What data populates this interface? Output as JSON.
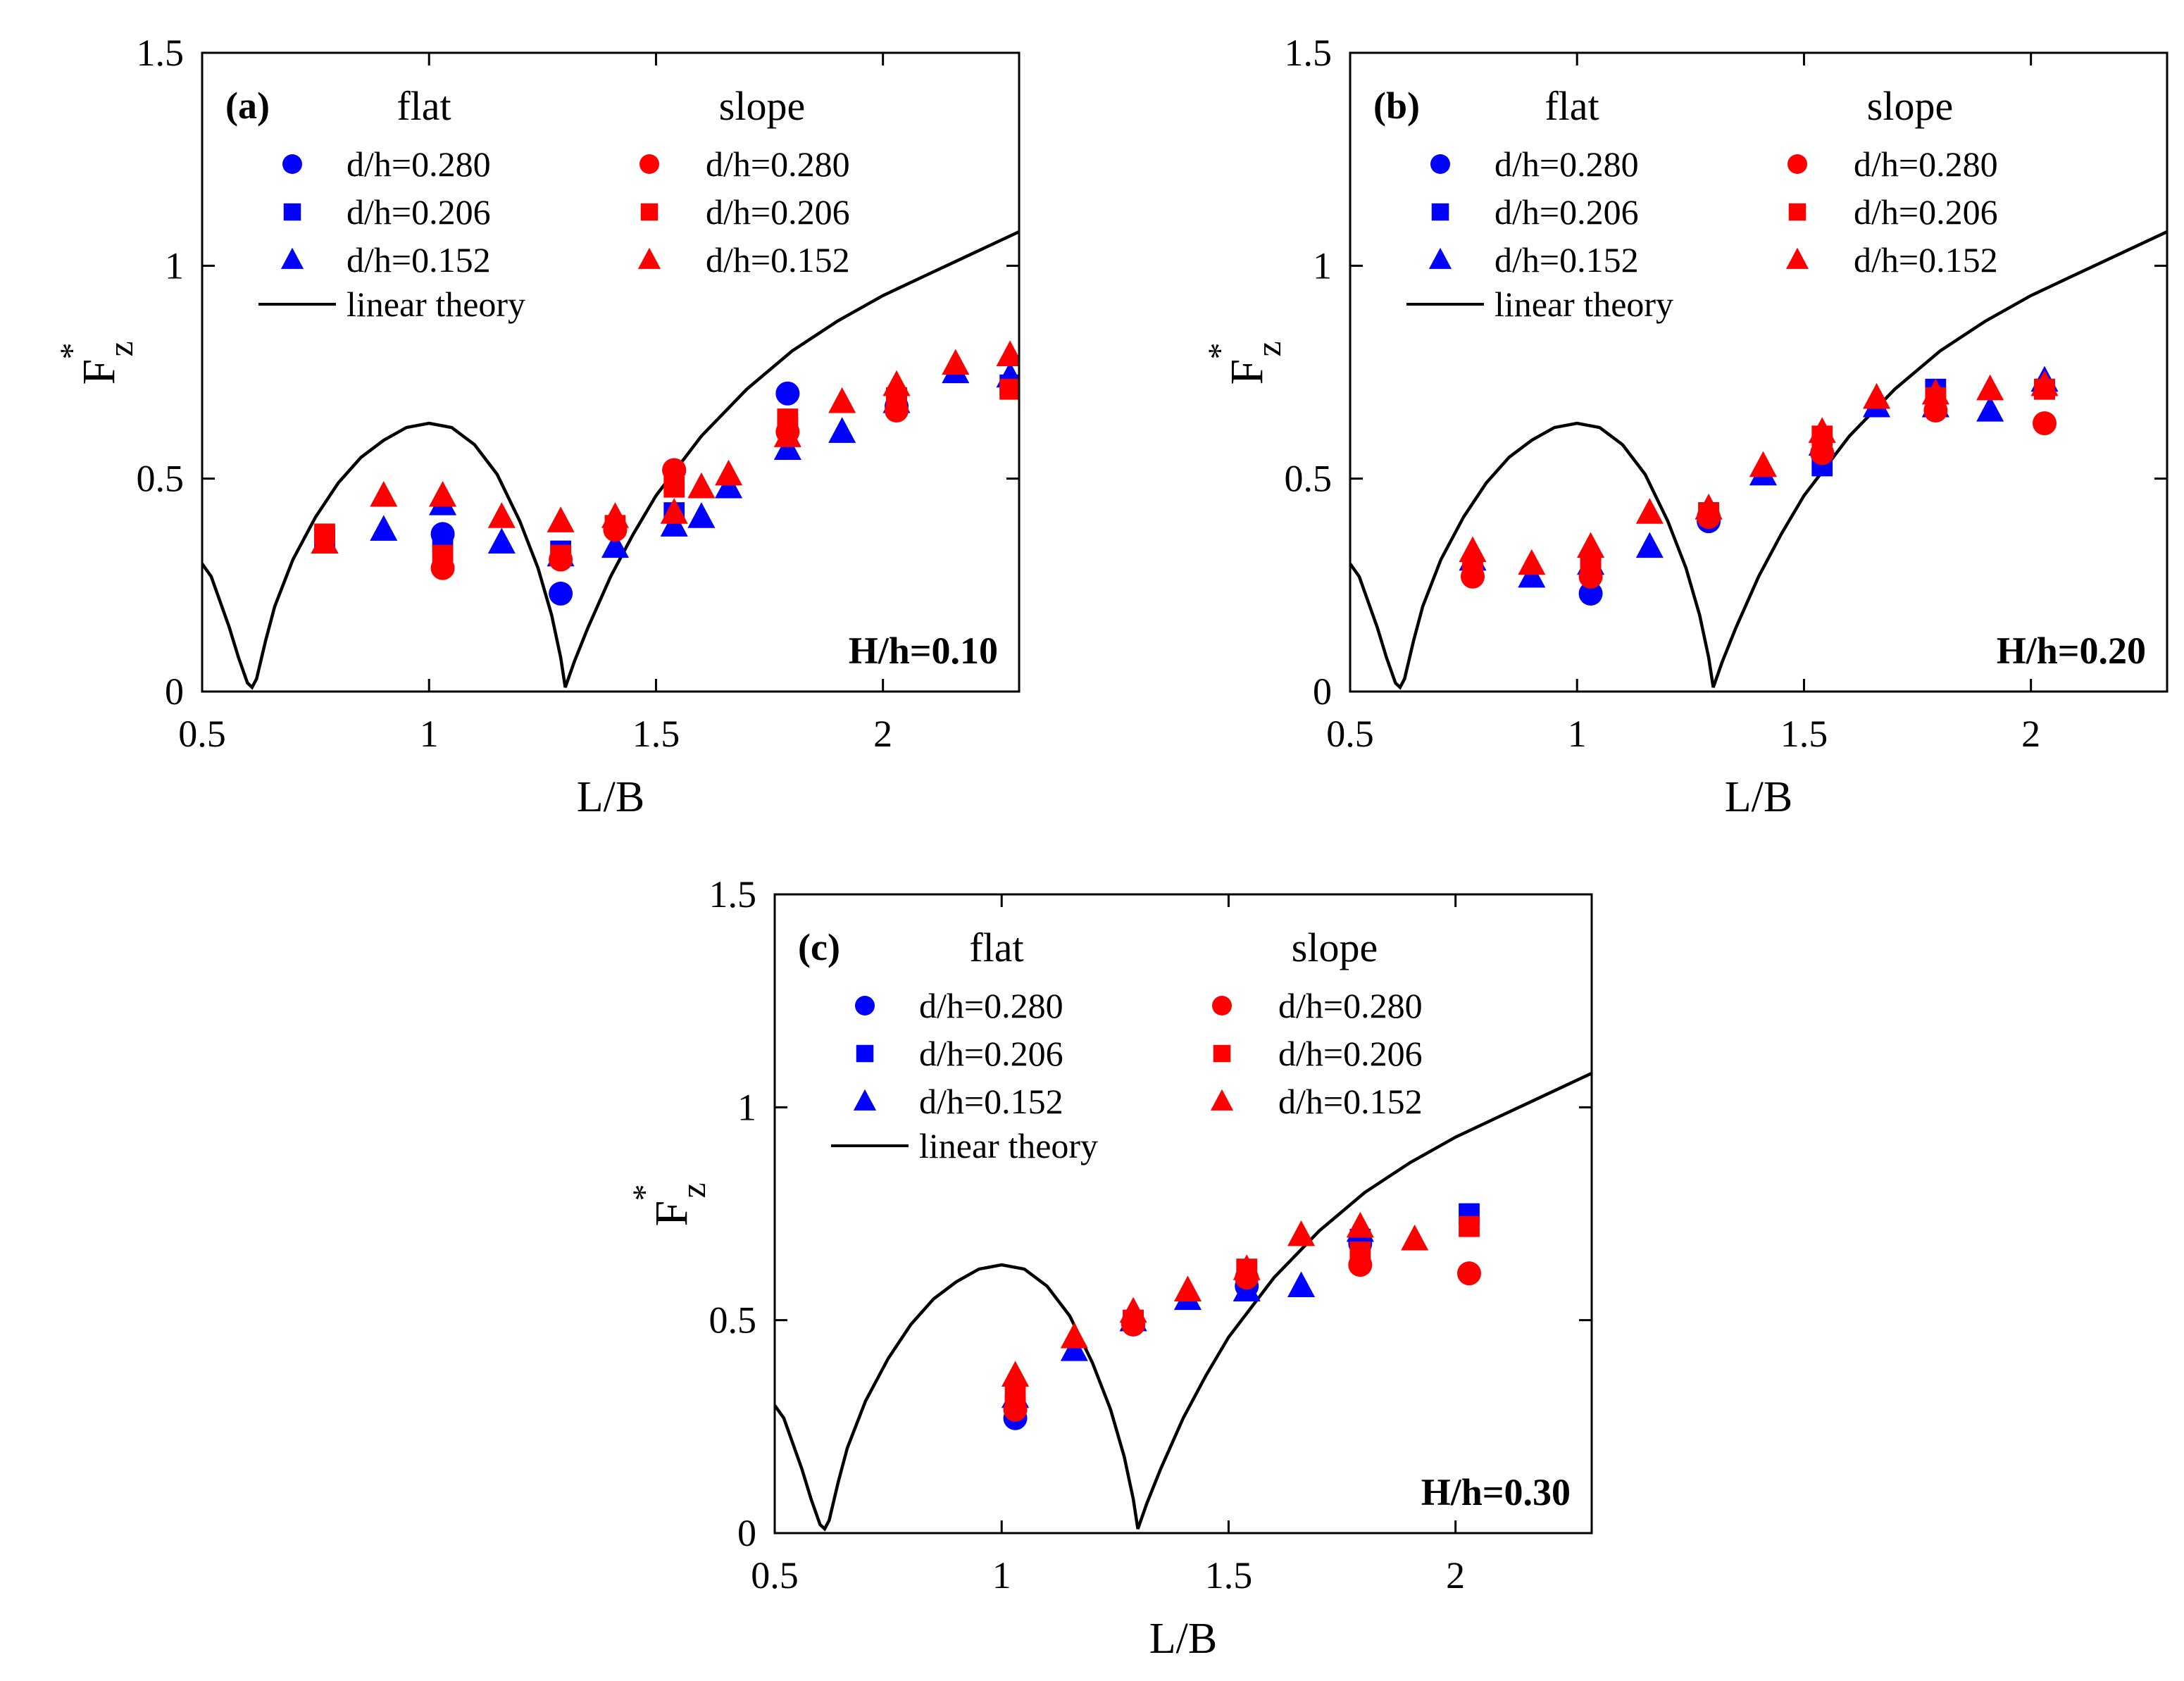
{
  "colors": {
    "flat": "#0000ff",
    "slope": "#ff0000",
    "theory": "#000000"
  },
  "chart_data": [
    {
      "type": "scatter",
      "panel_label": "(a)",
      "annotation": "H/h=0.10",
      "xlabel": "L/B",
      "ylabel": {
        "main": "F",
        "sup": "*",
        "sub": "z"
      },
      "xlim": [
        0.5,
        2.3
      ],
      "ylim": [
        0,
        1.5
      ],
      "xticks": [
        0.5,
        1,
        1.5,
        2
      ],
      "xtick_labels": [
        "0.5",
        "1",
        "1.5",
        "2"
      ],
      "yticks": [
        0,
        0.5,
        1,
        1.5
      ],
      "ytick_labels": [
        "0",
        "0.5",
        "1",
        "1.5"
      ],
      "grid": false,
      "legend": {
        "placement": "top-left",
        "flat_title": "flat",
        "slope_title": "slope",
        "entries": [
          "d/h=0.280",
          "d/h=0.206",
          "d/h=0.152"
        ],
        "line_entry": "linear theory"
      },
      "series": [
        {
          "name": "flat d/h=0.280",
          "group": "flat",
          "marker": "circle",
          "points": [
            [
              1.03,
              0.37
            ],
            [
              1.29,
              0.23
            ],
            [
              1.54,
              0.52
            ],
            [
              1.79,
              0.7
            ],
            [
              2.03,
              0.67
            ]
          ]
        },
        {
          "name": "flat d/h=0.206",
          "group": "flat",
          "marker": "square",
          "points": [
            [
              0.77,
              0.36
            ],
            [
              1.03,
              0.35
            ],
            [
              1.29,
              0.33
            ],
            [
              1.54,
              0.42
            ],
            [
              1.79,
              0.62
            ],
            [
              2.03,
              0.69
            ],
            [
              2.28,
              0.72
            ]
          ]
        },
        {
          "name": "flat d/h=0.152",
          "group": "flat",
          "marker": "triangle",
          "points": [
            [
              0.77,
              0.35
            ],
            [
              0.9,
              0.38
            ],
            [
              1.03,
              0.44
            ],
            [
              1.16,
              0.35
            ],
            [
              1.29,
              0.32
            ],
            [
              1.41,
              0.34
            ],
            [
              1.54,
              0.39
            ],
            [
              1.6,
              0.41
            ],
            [
              1.66,
              0.48
            ],
            [
              1.79,
              0.57
            ],
            [
              1.91,
              0.61
            ],
            [
              2.03,
              0.68
            ],
            [
              2.16,
              0.75
            ],
            [
              2.28,
              0.74
            ]
          ]
        },
        {
          "name": "slope d/h=0.280",
          "group": "slope",
          "marker": "circle",
          "points": [
            [
              1.03,
              0.29
            ],
            [
              1.29,
              0.31
            ],
            [
              1.41,
              0.38
            ],
            [
              1.54,
              0.52
            ],
            [
              1.79,
              0.61
            ],
            [
              2.03,
              0.66
            ]
          ]
        },
        {
          "name": "slope d/h=0.206",
          "group": "slope",
          "marker": "square",
          "points": [
            [
              0.77,
              0.37
            ],
            [
              1.03,
              0.32
            ],
            [
              1.29,
              0.32
            ],
            [
              1.41,
              0.39
            ],
            [
              1.54,
              0.48
            ],
            [
              1.79,
              0.64
            ],
            [
              2.03,
              0.69
            ],
            [
              2.28,
              0.71
            ]
          ]
        },
        {
          "name": "slope d/h=0.152",
          "group": "slope",
          "marker": "triangle",
          "points": [
            [
              0.77,
              0.35
            ],
            [
              0.9,
              0.46
            ],
            [
              1.03,
              0.46
            ],
            [
              1.16,
              0.41
            ],
            [
              1.29,
              0.4
            ],
            [
              1.41,
              0.41
            ],
            [
              1.54,
              0.42
            ],
            [
              1.6,
              0.48
            ],
            [
              1.66,
              0.51
            ],
            [
              1.79,
              0.6
            ],
            [
              1.91,
              0.68
            ],
            [
              2.03,
              0.72
            ],
            [
              2.16,
              0.77
            ],
            [
              2.28,
              0.79
            ]
          ]
        }
      ],
      "line": {
        "name": "linear theory",
        "x": [
          0.5,
          0.52,
          0.54,
          0.56,
          0.58,
          0.6,
          0.61,
          0.62,
          0.64,
          0.66,
          0.7,
          0.75,
          0.8,
          0.85,
          0.9,
          0.95,
          1.0,
          1.05,
          1.1,
          1.15,
          1.2,
          1.24,
          1.27,
          1.29,
          1.3,
          1.32,
          1.35,
          1.4,
          1.45,
          1.5,
          1.55,
          1.6,
          1.7,
          1.8,
          1.9,
          2.0,
          2.1,
          2.2,
          2.3
        ],
        "y": [
          0.3,
          0.27,
          0.21,
          0.15,
          0.08,
          0.02,
          0.01,
          0.03,
          0.12,
          0.2,
          0.31,
          0.41,
          0.49,
          0.55,
          0.59,
          0.62,
          0.63,
          0.62,
          0.58,
          0.51,
          0.4,
          0.29,
          0.18,
          0.08,
          0.01,
          0.07,
          0.15,
          0.27,
          0.37,
          0.46,
          0.53,
          0.6,
          0.71,
          0.8,
          0.87,
          0.93,
          0.98,
          1.03,
          1.08
        ]
      }
    },
    {
      "type": "scatter",
      "panel_label": "(b)",
      "annotation": "H/h=0.20",
      "xlabel": "L/B",
      "ylabel": {
        "main": "F",
        "sup": "*",
        "sub": "z"
      },
      "xlim": [
        0.5,
        2.3
      ],
      "ylim": [
        0,
        1.5
      ],
      "xticks": [
        0.5,
        1,
        1.5,
        2
      ],
      "xtick_labels": [
        "0.5",
        "1",
        "1.5",
        "2"
      ],
      "yticks": [
        0,
        0.5,
        1,
        1.5
      ],
      "ytick_labels": [
        "0",
        "0.5",
        "1",
        "1.5"
      ],
      "grid": false,
      "legend": {
        "placement": "top-left",
        "flat_title": "flat",
        "slope_title": "slope",
        "entries": [
          "d/h=0.280",
          "d/h=0.206",
          "d/h=0.152"
        ],
        "line_entry": "linear theory"
      },
      "series": [
        {
          "name": "flat d/h=0.280",
          "group": "flat",
          "marker": "circle",
          "points": [
            [
              1.03,
              0.23
            ],
            [
              1.29,
              0.4
            ],
            [
              1.54,
              0.56
            ]
          ]
        },
        {
          "name": "flat d/h=0.206",
          "group": "flat",
          "marker": "square",
          "points": [
            [
              1.03,
              0.29
            ],
            [
              1.29,
              0.42
            ],
            [
              1.54,
              0.53
            ],
            [
              1.79,
              0.71
            ],
            [
              2.03,
              0.71
            ]
          ]
        },
        {
          "name": "flat d/h=0.152",
          "group": "flat",
          "marker": "triangle",
          "points": [
            [
              0.77,
              0.31
            ],
            [
              0.9,
              0.27
            ],
            [
              1.03,
              0.3
            ],
            [
              1.16,
              0.34
            ],
            [
              1.29,
              0.43
            ],
            [
              1.41,
              0.51
            ],
            [
              1.54,
              0.58
            ],
            [
              1.66,
              0.67
            ],
            [
              1.79,
              0.67
            ],
            [
              1.91,
              0.66
            ],
            [
              2.03,
              0.73
            ]
          ]
        },
        {
          "name": "slope d/h=0.280",
          "group": "slope",
          "marker": "circle",
          "points": [
            [
              0.77,
              0.27
            ],
            [
              1.03,
              0.27
            ],
            [
              1.29,
              0.41
            ],
            [
              1.54,
              0.56
            ],
            [
              1.79,
              0.66
            ],
            [
              2.03,
              0.63
            ]
          ]
        },
        {
          "name": "slope d/h=0.206",
          "group": "slope",
          "marker": "square",
          "points": [
            [
              0.77,
              0.29
            ],
            [
              1.03,
              0.29
            ],
            [
              1.29,
              0.42
            ],
            [
              1.54,
              0.6
            ],
            [
              1.79,
              0.69
            ],
            [
              2.03,
              0.71
            ]
          ]
        },
        {
          "name": "slope d/h=0.152",
          "group": "slope",
          "marker": "triangle",
          "points": [
            [
              0.77,
              0.33
            ],
            [
              0.9,
              0.3
            ],
            [
              1.03,
              0.34
            ],
            [
              1.16,
              0.42
            ],
            [
              1.29,
              0.43
            ],
            [
              1.41,
              0.53
            ],
            [
              1.54,
              0.61
            ],
            [
              1.66,
              0.69
            ],
            [
              1.79,
              0.7
            ],
            [
              1.91,
              0.71
            ],
            [
              2.03,
              0.72
            ]
          ]
        }
      ],
      "line": {
        "name": "linear theory",
        "x": [
          0.5,
          0.52,
          0.54,
          0.56,
          0.58,
          0.6,
          0.61,
          0.62,
          0.64,
          0.66,
          0.7,
          0.75,
          0.8,
          0.85,
          0.9,
          0.95,
          1.0,
          1.05,
          1.1,
          1.15,
          1.2,
          1.24,
          1.27,
          1.29,
          1.3,
          1.32,
          1.35,
          1.4,
          1.45,
          1.5,
          1.55,
          1.6,
          1.7,
          1.8,
          1.9,
          2.0,
          2.1,
          2.2,
          2.3
        ],
        "y": [
          0.3,
          0.27,
          0.21,
          0.15,
          0.08,
          0.02,
          0.01,
          0.03,
          0.12,
          0.2,
          0.31,
          0.41,
          0.49,
          0.55,
          0.59,
          0.62,
          0.63,
          0.62,
          0.58,
          0.51,
          0.4,
          0.29,
          0.18,
          0.08,
          0.01,
          0.07,
          0.15,
          0.27,
          0.37,
          0.46,
          0.53,
          0.6,
          0.71,
          0.8,
          0.87,
          0.93,
          0.98,
          1.03,
          1.08
        ]
      }
    },
    {
      "type": "scatter",
      "panel_label": "(c)",
      "annotation": "H/h=0.30",
      "xlabel": "L/B",
      "ylabel": {
        "main": "F",
        "sup": "*",
        "sub": "z"
      },
      "xlim": [
        0.5,
        2.3
      ],
      "ylim": [
        0,
        1.5
      ],
      "xticks": [
        0.5,
        1,
        1.5,
        2
      ],
      "xtick_labels": [
        "0.5",
        "1",
        "1.5",
        "2"
      ],
      "yticks": [
        0,
        0.5,
        1,
        1.5
      ],
      "ytick_labels": [
        "0",
        "0.5",
        "1",
        "1.5"
      ],
      "grid": false,
      "legend": {
        "placement": "top-left",
        "flat_title": "flat",
        "slope_title": "slope",
        "entries": [
          "d/h=0.280",
          "d/h=0.206",
          "d/h=0.152"
        ],
        "line_entry": "linear theory"
      },
      "series": [
        {
          "name": "flat d/h=0.280",
          "group": "flat",
          "marker": "circle",
          "points": [
            [
              1.03,
              0.27
            ],
            [
              1.29,
              0.49
            ],
            [
              1.54,
              0.58
            ],
            [
              1.79,
              0.68
            ]
          ]
        },
        {
          "name": "flat d/h=0.206",
          "group": "flat",
          "marker": "square",
          "points": [
            [
              1.03,
              0.3
            ],
            [
              1.29,
              0.5
            ],
            [
              1.54,
              0.59
            ],
            [
              1.79,
              0.69
            ],
            [
              2.03,
              0.75
            ]
          ]
        },
        {
          "name": "flat d/h=0.152",
          "group": "flat",
          "marker": "triangle",
          "points": [
            [
              1.03,
              0.32
            ],
            [
              1.16,
              0.43
            ],
            [
              1.29,
              0.5
            ],
            [
              1.41,
              0.55
            ],
            [
              1.54,
              0.57
            ],
            [
              1.66,
              0.58
            ],
            [
              1.79,
              0.71
            ]
          ]
        },
        {
          "name": "slope d/h=0.280",
          "group": "slope",
          "marker": "circle",
          "points": [
            [
              1.03,
              0.29
            ],
            [
              1.29,
              0.49
            ],
            [
              1.54,
              0.6
            ],
            [
              1.79,
              0.63
            ],
            [
              2.03,
              0.61
            ]
          ]
        },
        {
          "name": "slope d/h=0.206",
          "group": "slope",
          "marker": "square",
          "points": [
            [
              1.03,
              0.33
            ],
            [
              1.29,
              0.5
            ],
            [
              1.54,
              0.62
            ],
            [
              1.79,
              0.66
            ],
            [
              2.03,
              0.72
            ]
          ]
        },
        {
          "name": "slope d/h=0.152",
          "group": "slope",
          "marker": "triangle",
          "points": [
            [
              1.03,
              0.37
            ],
            [
              1.16,
              0.46
            ],
            [
              1.29,
              0.52
            ],
            [
              1.41,
              0.57
            ],
            [
              1.54,
              0.62
            ],
            [
              1.66,
              0.7
            ],
            [
              1.79,
              0.72
            ],
            [
              1.91,
              0.69
            ]
          ]
        }
      ],
      "line": {
        "name": "linear theory",
        "x": [
          0.5,
          0.52,
          0.54,
          0.56,
          0.58,
          0.6,
          0.61,
          0.62,
          0.64,
          0.66,
          0.7,
          0.75,
          0.8,
          0.85,
          0.9,
          0.95,
          1.0,
          1.05,
          1.1,
          1.15,
          1.2,
          1.24,
          1.27,
          1.29,
          1.3,
          1.32,
          1.35,
          1.4,
          1.45,
          1.5,
          1.55,
          1.6,
          1.7,
          1.8,
          1.9,
          2.0,
          2.1,
          2.2,
          2.3
        ],
        "y": [
          0.3,
          0.27,
          0.21,
          0.15,
          0.08,
          0.02,
          0.01,
          0.03,
          0.12,
          0.2,
          0.31,
          0.41,
          0.49,
          0.55,
          0.59,
          0.62,
          0.63,
          0.62,
          0.58,
          0.51,
          0.4,
          0.29,
          0.18,
          0.08,
          0.01,
          0.07,
          0.15,
          0.27,
          0.37,
          0.46,
          0.53,
          0.6,
          0.71,
          0.8,
          0.87,
          0.93,
          0.98,
          1.03,
          1.08
        ]
      }
    }
  ]
}
